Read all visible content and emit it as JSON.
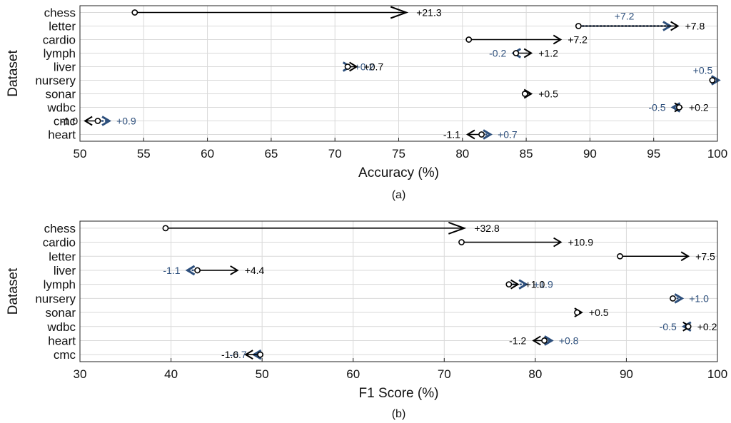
{
  "colors": {
    "primary": "#000000",
    "secondary": "#2d4f7c",
    "grid": "#d9d9d9"
  },
  "chart_data": [
    {
      "type": "scatter",
      "panel_label": "(a)",
      "xlabel": "Accuracy (%)",
      "ylabel": "Dataset",
      "xlim": [
        50,
        100
      ],
      "xticks": [
        "50",
        "55",
        "60",
        "65",
        "70",
        "75",
        "80",
        "85",
        "90",
        "95",
        "100"
      ],
      "grid": true,
      "categories": [
        "chess",
        "letter",
        "cardio",
        "lymph",
        "liver",
        "nursery",
        "sonar",
        "wdbc",
        "cmc",
        "heart"
      ],
      "series": [
        {
          "role": "primary",
          "items": [
            {
              "category": "chess",
              "start": 54.3,
              "end": 75.6,
              "label": "+21.3"
            },
            {
              "category": "letter",
              "start": 89.1,
              "end": 96.9,
              "label": "+7.8"
            },
            {
              "category": "cardio",
              "start": 80.5,
              "end": 87.7,
              "label": "+7.2"
            },
            {
              "category": "lymph",
              "start": 84.2,
              "end": 85.4,
              "label": "+1.2"
            },
            {
              "category": "liver",
              "start": 71.0,
              "end": 71.7,
              "label": "+0.7"
            },
            {
              "category": "sonar",
              "start": 84.9,
              "end": 85.4,
              "label": "+0.5"
            },
            {
              "category": "wdbc",
              "start": 97.0,
              "end": 97.2,
              "label": "+0.2"
            },
            {
              "category": "cmc",
              "start": 51.4,
              "end": 50.4,
              "label": "-1.0"
            },
            {
              "category": "heart",
              "start": 81.5,
              "end": 80.4,
              "label": "-1.1"
            }
          ]
        },
        {
          "role": "secondary",
          "items": [
            {
              "category": "letter",
              "start": 89.1,
              "end": 96.3,
              "label": "+7.2"
            },
            {
              "category": "lymph",
              "start": 84.2,
              "end": 84.0,
              "label": "-0.2"
            },
            {
              "category": "liver",
              "start": 71.0,
              "end": 71.2,
              "label": "+0.2"
            },
            {
              "category": "nursery",
              "start": 99.6,
              "end": 100.1,
              "label": "+0.5"
            },
            {
              "category": "wdbc",
              "start": 97.0,
              "end": 96.5,
              "label": "-0.5"
            },
            {
              "category": "cmc",
              "start": 51.4,
              "end": 52.3,
              "label": "+0.9"
            },
            {
              "category": "heart",
              "start": 81.5,
              "end": 82.2,
              "label": "+0.7"
            }
          ]
        }
      ]
    },
    {
      "type": "scatter",
      "panel_label": "(b)",
      "xlabel": "F1 Score (%)",
      "ylabel": "Dataset",
      "xlim": [
        30,
        100
      ],
      "xticks": [
        "30",
        "40",
        "50",
        "60",
        "70",
        "80",
        "90",
        "100"
      ],
      "grid": true,
      "categories": [
        "chess",
        "cardio",
        "letter",
        "liver",
        "lymph",
        "nursery",
        "sonar",
        "wdbc",
        "heart",
        "cmc"
      ],
      "series": [
        {
          "role": "primary",
          "items": [
            {
              "category": "chess",
              "start": 39.4,
              "end": 72.2,
              "label": "+32.8"
            },
            {
              "category": "cardio",
              "start": 71.9,
              "end": 82.8,
              "label": "+10.9"
            },
            {
              "category": "letter",
              "start": 89.3,
              "end": 96.8,
              "label": "+7.5"
            },
            {
              "category": "liver",
              "start": 42.9,
              "end": 47.3,
              "label": "+4.4"
            },
            {
              "category": "lymph",
              "start": 77.1,
              "end": 78.1,
              "label": "+1.0"
            },
            {
              "category": "sonar",
              "start": 84.6,
              "end": 85.1,
              "label": "+0.5"
            },
            {
              "category": "wdbc",
              "start": 96.8,
              "end": 97.0,
              "label": "+0.2"
            },
            {
              "category": "heart",
              "start": 81.0,
              "end": 79.8,
              "label": "-1.2"
            },
            {
              "category": "cmc",
              "start": 49.8,
              "end": 48.2,
              "label": "-1.6"
            }
          ]
        },
        {
          "role": "secondary",
          "items": [
            {
              "category": "liver",
              "start": 42.9,
              "end": 41.8,
              "label": "-1.1"
            },
            {
              "category": "lymph",
              "start": 77.1,
              "end": 79.0,
              "label": "+1.9"
            },
            {
              "category": "nursery",
              "start": 95.1,
              "end": 96.1,
              "label": "+1.0"
            },
            {
              "category": "wdbc",
              "start": 96.8,
              "end": 96.3,
              "label": "-0.5"
            },
            {
              "category": "heart",
              "start": 81.0,
              "end": 81.8,
              "label": "+0.8"
            },
            {
              "category": "cmc",
              "start": 49.8,
              "end": 49.1,
              "label": "-0.7"
            }
          ]
        }
      ]
    }
  ]
}
